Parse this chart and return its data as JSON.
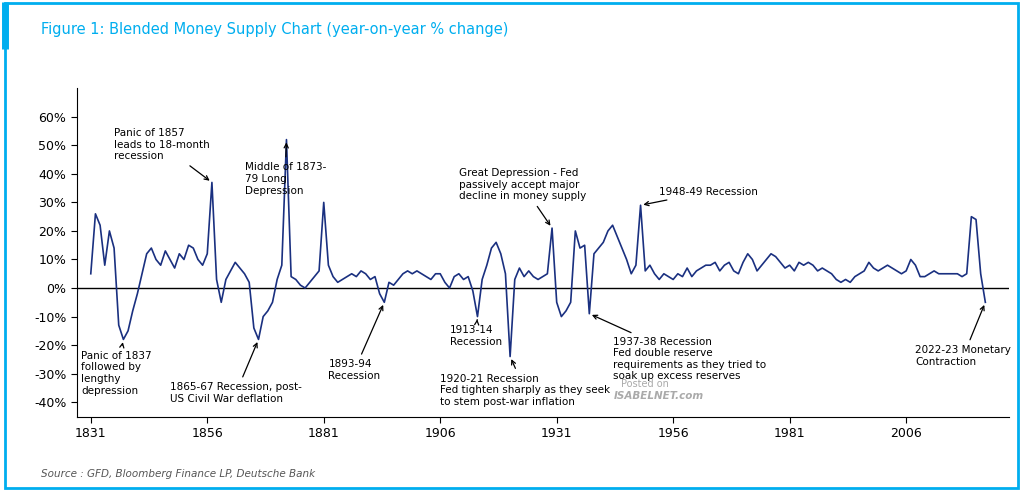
{
  "title": "Figure 1: Blended Money Supply Chart (year-on-year % change)",
  "source": "Source : GFD, Bloomberg Finance LP, Deutsche Bank",
  "line_color": "#1a3080",
  "background_color": "#ffffff",
  "border_color": "#00aeef",
  "title_color": "#00aeef",
  "ylim": [
    -45,
    70
  ],
  "yticks": [
    -40,
    -30,
    -20,
    -10,
    0,
    10,
    20,
    30,
    40,
    50,
    60
  ],
  "ytick_labels": [
    "-40%",
    "-30%",
    "-20%",
    "-10%",
    "0%",
    "10%",
    "20%",
    "30%",
    "40%",
    "50%",
    "60%"
  ],
  "xticks": [
    1831,
    1856,
    1881,
    1906,
    1931,
    1956,
    1981,
    2006
  ],
  "xlim": [
    1828,
    2028
  ]
}
